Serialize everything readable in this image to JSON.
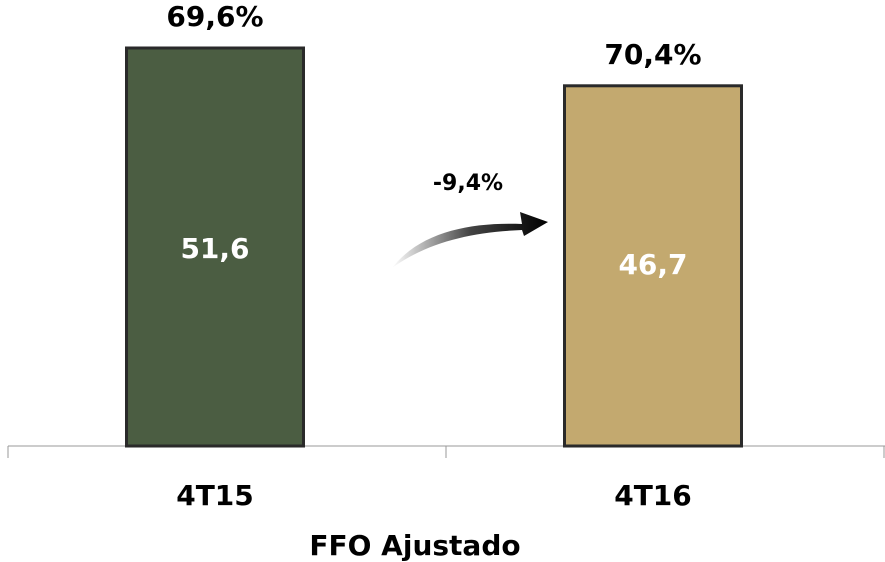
{
  "chart_data": {
    "type": "bar",
    "categories": [
      "4T15",
      "4T16"
    ],
    "series": [
      {
        "values": [
          51.6,
          46.7
        ],
        "value_labels": [
          "51,6",
          "46,7"
        ],
        "colors": [
          "#4b5d42",
          "#c3a96f"
        ]
      }
    ],
    "top_labels": {
      "values": [
        69.6,
        70.4
      ],
      "value_labels": [
        "69,6%",
        "70,4%"
      ]
    },
    "annotation": "-9,4%",
    "xlabel": "FFO Ajustado"
  }
}
